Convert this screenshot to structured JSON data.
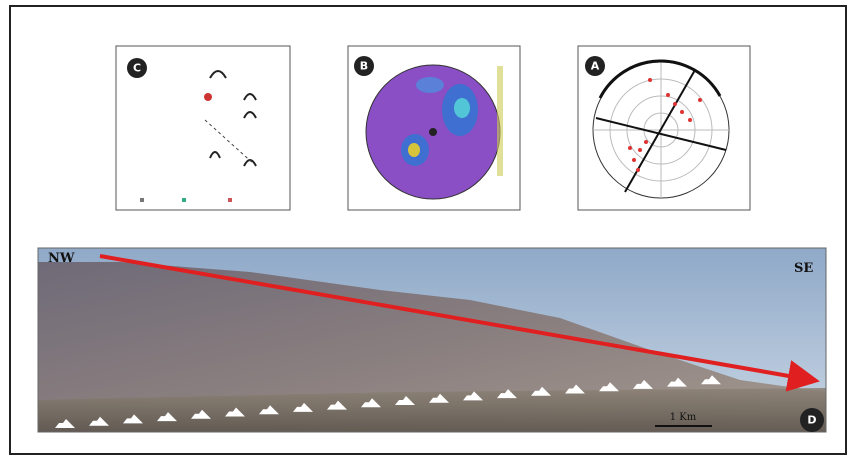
{
  "panels": [
    {
      "label": "C"
    },
    {
      "label": "B"
    },
    {
      "label": "A"
    }
  ],
  "photo": {
    "left_label": "NW",
    "right_label": "SE",
    "scale_label": "1 Km",
    "panel_label": "D"
  }
}
